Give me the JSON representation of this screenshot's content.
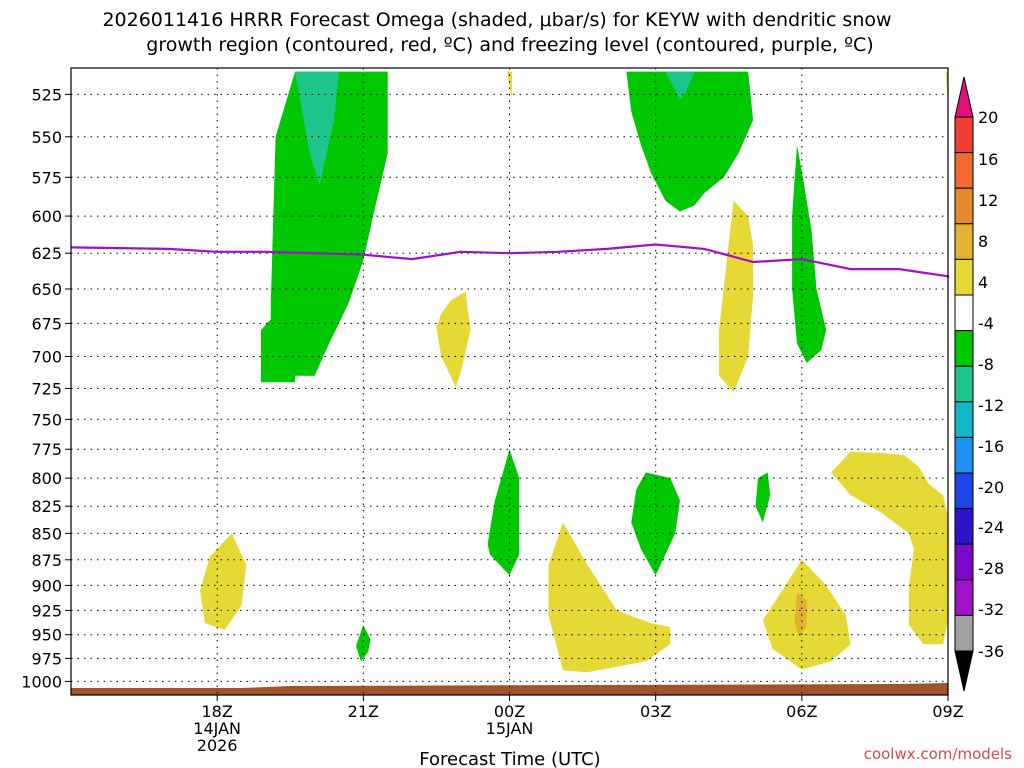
{
  "chart_data": {
    "type": "heatmap",
    "title_line1": "2026011416 HRRR Forecast Omega (shaded, μbar/s) for KEYW with dendritic snow",
    "title_line2": "growth region (contoured, red, ºC) and freezing level (contoured, purple, ºC)",
    "xlabel": "Forecast Time (UTC)",
    "ylabel": "",
    "xlim": [
      -3,
      15
    ],
    "ylim": [
      1015,
      510
    ],
    "y_ticks": [
      525,
      550,
      575,
      600,
      625,
      650,
      675,
      700,
      725,
      750,
      775,
      800,
      825,
      850,
      875,
      900,
      925,
      950,
      975,
      1000
    ],
    "x_ticks": [
      {
        "hour": 0,
        "lines": [
          "18Z",
          "14JAN",
          "2026"
        ]
      },
      {
        "hour": 3,
        "lines": [
          "21Z"
        ]
      },
      {
        "hour": 6,
        "lines": [
          "00Z",
          "15JAN"
        ]
      },
      {
        "hour": 9,
        "lines": [
          "03Z"
        ]
      },
      {
        "hour": 12,
        "lines": [
          "06Z"
        ]
      },
      {
        "hour": 15,
        "lines": [
          "09Z"
        ]
      }
    ],
    "colorbar": {
      "labels": [
        "20",
        "16",
        "12",
        "8",
        "4",
        "-4",
        "-8",
        "-12",
        "-16",
        "-20",
        "-24",
        "-28",
        "-32",
        "-36"
      ],
      "colors": [
        "#e0107a",
        "#f03c32",
        "#f26a2c",
        "#e58a2a",
        "#e3b032",
        "#e6d935",
        "#ffffff",
        "#00c800",
        "#1ec58a",
        "#14b7c7",
        "#1e90f0",
        "#1e46e6",
        "#2d14c8",
        "#7a0ac8",
        "#a014c8",
        "#a0a0a0",
        "#000000"
      ]
    },
    "freezing_level": {
      "color": "#a010c8",
      "hours": [
        -3,
        -1,
        0,
        1,
        2,
        3,
        4,
        5,
        6,
        7,
        8,
        9,
        10,
        11,
        12,
        13,
        14,
        15,
        15.9
      ],
      "pressure": [
        621,
        622,
        624,
        624,
        625,
        626,
        629,
        624,
        625,
        624,
        622,
        619,
        622,
        631,
        629,
        636,
        636,
        641,
        642
      ]
    },
    "omega_regions": [
      {
        "level": 4,
        "color": "#e6d935",
        "hours": [
          -0.35,
          -0.15,
          0.3,
          0.6,
          0.5,
          0.15,
          -0.25,
          -0.35
        ],
        "pressure": [
          905,
          872,
          850,
          880,
          920,
          945,
          938,
          905
        ]
      },
      {
        "level": 4,
        "color": "#e6d935",
        "hours": [
          4.6,
          4.8,
          5.1,
          5.2,
          5.0,
          4.9,
          4.6,
          4.5,
          4.6
        ],
        "pressure": [
          668,
          658,
          652,
          680,
          712,
          724,
          700,
          678,
          668
        ]
      },
      {
        "level": 4,
        "color": "#e6d935",
        "hours": [
          7.1,
          7.6,
          8.2,
          8.9,
          9.3,
          9.3,
          8.8,
          7.6,
          7.1,
          6.8,
          6.8,
          7.1
        ],
        "pressure": [
          840,
          880,
          925,
          938,
          942,
          960,
          978,
          990,
          988,
          930,
          880,
          840
        ]
      },
      {
        "level": 4,
        "color": "#e6d935",
        "hours": [
          12.0,
          12.5,
          12.9,
          13.0,
          12.6,
          12.0,
          11.4,
          11.2,
          11.6,
          12.0
        ],
        "pressure": [
          875,
          900,
          930,
          960,
          978,
          987,
          965,
          935,
          905,
          875
        ]
      },
      {
        "level": 8,
        "color": "#e3b032",
        "hours": [
          11.9,
          12.1,
          12.1,
          11.95,
          11.85,
          11.9
        ],
        "pressure": [
          907,
          915,
          940,
          952,
          938,
          907
        ]
      },
      {
        "level": 4,
        "color": "#e6d935",
        "hours": [
          10.6,
          10.9,
          11.0,
          11.0,
          10.9,
          10.6,
          10.3,
          10.3,
          10.4,
          10.6
        ],
        "pressure": [
          590,
          600,
          620,
          655,
          700,
          728,
          715,
          680,
          648,
          590
        ]
      },
      {
        "level": 4,
        "color": "#e6d935",
        "hours": [
          13.0,
          13.6,
          14.1,
          14.4,
          14.6,
          14.9,
          15.2,
          15.3,
          15.1,
          14.9,
          14.5,
          14.2,
          14.2,
          14.3,
          14.2,
          13.6,
          13.0,
          12.6,
          13.0
        ],
        "pressure": [
          777,
          778,
          780,
          790,
          805,
          815,
          835,
          880,
          935,
          960,
          960,
          940,
          900,
          865,
          850,
          830,
          815,
          795,
          777
        ]
      },
      {
        "level": 4,
        "color": "#e6d935",
        "hours": [
          5.95,
          6.05,
          6.05
        ],
        "pressure": [
          512,
          512,
          528
        ]
      },
      {
        "level": 4,
        "color": "#e6d935",
        "hours": [
          14.95,
          15.1,
          15.0
        ],
        "pressure": [
          512,
          512,
          530
        ]
      }
    ],
    "omega_negative": [
      {
        "level": -4,
        "color": "#00c800",
        "hours": [
          0.9,
          0.9,
          1.1,
          1.1,
          1.2,
          1.6,
          2.0,
          3.0,
          3.5,
          3.5,
          3.2,
          3.0,
          2.7,
          2.3,
          2.0,
          1.6,
          1.6,
          1.2,
          0.9
        ],
        "pressure": [
          720,
          680,
          672,
          660,
          550,
          512,
          512,
          512,
          512,
          560,
          600,
          630,
          660,
          690,
          715,
          715,
          720,
          720,
          720
        ]
      },
      {
        "level": -8,
        "color": "#1ec58a",
        "hours": [
          1.6,
          2.5,
          2.4,
          2.1,
          1.9,
          1.6
        ],
        "pressure": [
          512,
          512,
          540,
          580,
          560,
          512
        ]
      },
      {
        "level": -4,
        "color": "#00c800",
        "hours": [
          3.0,
          3.15,
          3.1,
          2.95,
          2.85,
          3.0
        ],
        "pressure": [
          940,
          955,
          968,
          978,
          962,
          940
        ]
      },
      {
        "level": -4,
        "color": "#00c800",
        "hours": [
          6.0,
          6.2,
          6.2,
          6.0,
          5.6,
          5.55,
          5.7,
          6.0
        ],
        "pressure": [
          775,
          800,
          870,
          890,
          870,
          860,
          820,
          775
        ]
      },
      {
        "level": -4,
        "color": "#00c800",
        "hours": [
          8.8,
          9.3,
          9.5,
          9.4,
          9.1,
          9.0,
          8.7,
          8.5,
          8.6,
          8.8
        ],
        "pressure": [
          795,
          800,
          820,
          850,
          880,
          890,
          865,
          840,
          810,
          795
        ]
      },
      {
        "level": -4,
        "color": "#00c800",
        "hours": [
          11.3,
          11.35,
          11.2,
          11.05,
          11.1,
          11.3
        ],
        "pressure": [
          795,
          815,
          840,
          825,
          800,
          795
        ]
      },
      {
        "level": -4,
        "color": "#00c800",
        "hours": [
          8.4,
          10.9,
          11.0,
          10.7,
          10.4,
          10.0,
          9.8,
          9.5,
          9.2,
          8.9,
          8.7,
          8.5,
          8.4
        ],
        "pressure": [
          512,
          512,
          540,
          560,
          575,
          585,
          593,
          597,
          590,
          572,
          555,
          535,
          512
        ]
      },
      {
        "level": -8,
        "color": "#1ec58a",
        "hours": [
          9.2,
          9.8,
          9.6,
          9.5,
          9.2
        ],
        "pressure": [
          512,
          512,
          525,
          528,
          512
        ]
      },
      {
        "level": -4,
        "color": "#00c800",
        "hours": [
          11.9,
          12.05,
          12.2,
          12.3,
          12.5,
          12.4,
          12.1,
          11.9,
          11.8,
          11.8,
          11.9
        ],
        "pressure": [
          555,
          580,
          610,
          650,
          680,
          695,
          705,
          690,
          650,
          600,
          555
        ]
      }
    ],
    "ground": {
      "color": "#a0522d"
    },
    "watermark": "coolwx.com/models"
  }
}
